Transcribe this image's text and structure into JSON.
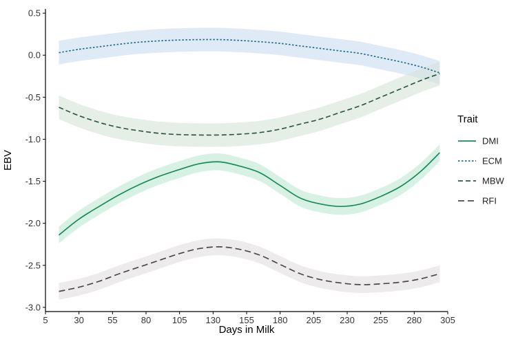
{
  "chart_data": {
    "type": "line",
    "xlabel": "Days in Milk",
    "ylabel": "EBV",
    "xlim": [
      5,
      305
    ],
    "ylim": [
      -3.05,
      0.55
    ],
    "x_ticks": [
      5,
      30,
      55,
      80,
      105,
      130,
      155,
      180,
      205,
      230,
      255,
      280,
      305
    ],
    "y_ticks": [
      -3.0,
      -2.5,
      -2.0,
      -1.5,
      -1.0,
      -0.5,
      0.0,
      0.5
    ],
    "y_tick_labels": [
      "-3.0",
      "-2.5",
      "-2.0",
      "-1.5",
      "-1.0",
      "-0.5",
      "0.0",
      "0.5"
    ],
    "grid": false,
    "legend": {
      "title": "Trait",
      "position": "right"
    },
    "series": [
      {
        "name": "DMI",
        "linestyle": "solid",
        "color": "#1a8a5a",
        "band_color": "#bfe8d4",
        "x": [
          15,
          30,
          45,
          60,
          75,
          90,
          105,
          120,
          135,
          150,
          165,
          180,
          195,
          210,
          225,
          240,
          255,
          270,
          285,
          299
        ],
        "y": [
          -2.14,
          -1.95,
          -1.8,
          -1.66,
          -1.54,
          -1.44,
          -1.36,
          -1.29,
          -1.27,
          -1.32,
          -1.4,
          -1.55,
          -1.7,
          -1.77,
          -1.8,
          -1.77,
          -1.68,
          -1.56,
          -1.38,
          -1.16
        ],
        "band_half_width": 0.1
      },
      {
        "name": "ECM",
        "linestyle": "dotted",
        "color": "#1f6f8f",
        "band_color": "#c9ddf0",
        "x": [
          15,
          30,
          45,
          60,
          75,
          90,
          105,
          120,
          135,
          150,
          165,
          180,
          195,
          210,
          225,
          240,
          255,
          270,
          285,
          299
        ],
        "y": [
          0.03,
          0.07,
          0.1,
          0.13,
          0.155,
          0.17,
          0.18,
          0.185,
          0.185,
          0.175,
          0.16,
          0.14,
          0.11,
          0.08,
          0.05,
          0.02,
          -0.03,
          -0.08,
          -0.14,
          -0.21
        ],
        "band_half_width": 0.14
      },
      {
        "name": "MBW",
        "linestyle": "dashed",
        "color": "#2f5a40",
        "band_color": "#d6e3da",
        "x": [
          15,
          30,
          45,
          60,
          75,
          90,
          105,
          120,
          135,
          150,
          165,
          180,
          195,
          210,
          225,
          240,
          255,
          270,
          285,
          299
        ],
        "y": [
          -0.62,
          -0.72,
          -0.8,
          -0.86,
          -0.9,
          -0.93,
          -0.945,
          -0.95,
          -0.95,
          -0.94,
          -0.92,
          -0.88,
          -0.82,
          -0.76,
          -0.68,
          -0.6,
          -0.5,
          -0.4,
          -0.3,
          -0.22
        ],
        "band_half_width": 0.14
      },
      {
        "name": "RFI",
        "linestyle": "longdash",
        "color": "#4a4a4a",
        "band_color": "#e3dfe0",
        "x": [
          15,
          30,
          45,
          60,
          75,
          90,
          105,
          120,
          135,
          150,
          165,
          180,
          195,
          210,
          225,
          240,
          255,
          270,
          285,
          299
        ],
        "y": [
          -2.81,
          -2.76,
          -2.69,
          -2.6,
          -2.52,
          -2.44,
          -2.36,
          -2.3,
          -2.28,
          -2.31,
          -2.38,
          -2.49,
          -2.6,
          -2.67,
          -2.71,
          -2.73,
          -2.72,
          -2.7,
          -2.66,
          -2.6
        ],
        "band_half_width": 0.1
      }
    ]
  }
}
